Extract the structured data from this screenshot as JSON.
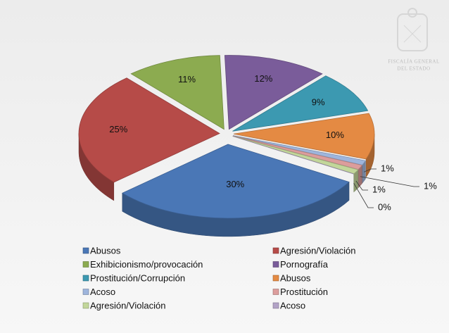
{
  "chart_data": {
    "type": "pie3d",
    "categories": [
      "Abusos",
      "Agresión/Violación",
      "Exhibicionismo/provocación",
      "Pornografía",
      "Prostitución/Corrupción",
      "Abusos",
      "Acoso",
      "Prostitución",
      "Agresión/Violación",
      "Acoso"
    ],
    "values": [
      30,
      25,
      11,
      12,
      9,
      10,
      1,
      1,
      1,
      0
    ],
    "value_labels": [
      "30%",
      "25%",
      "11%",
      "12%",
      "9%",
      "10%",
      "1%",
      "1%",
      "1%",
      "0%"
    ],
    "colors": [
      "#4a77b6",
      "#b64b48",
      "#8cab50",
      "#7a5c9a",
      "#3c99b1",
      "#e48a43",
      "#9eb5dc",
      "#dc9d9c",
      "#c2d69a",
      "#b2a2c6"
    ],
    "legend": "bottom"
  },
  "logo": [
    "FISCALÍA GENERAL",
    "DEL ESTADO"
  ]
}
